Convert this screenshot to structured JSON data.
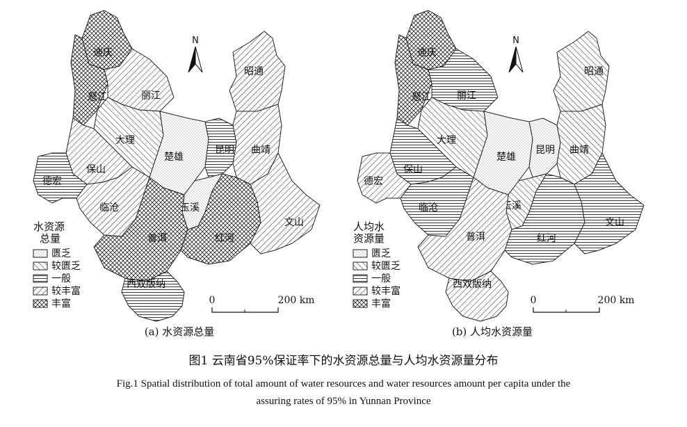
{
  "figure": {
    "caption_cn": "图1 云南省95%保证率下的水资源总量与人均水资源量分布",
    "caption_en_line1": "Fig.1  Spatial distribution of total amount of water resources and water resources amount per capita under the",
    "caption_en_line2": "assuring rates of 95% in Yunnan Province"
  },
  "legend_categories": [
    "匮乏",
    "较匮乏",
    "一般",
    "较丰富",
    "丰富"
  ],
  "north_label": "N",
  "scale": {
    "zero": "0",
    "max": "200 km"
  },
  "maps": [
    {
      "id": "a",
      "caption": "(a) 水资源总量",
      "legend_title_line1": "水资源",
      "legend_title_line2": "总量",
      "classes": {
        "迪庆": "丰富",
        "怒江": "丰富",
        "丽江": "较丰富",
        "大理": "较匮乏",
        "保山": "较丰富",
        "德宏": "一般",
        "临沧": "较丰富",
        "楚雄": "匮乏",
        "昆明": "一般",
        "曲靖": "较丰富",
        "昭通": "较丰富",
        "玉溪": "匮乏",
        "普洱": "丰富",
        "红河": "丰富",
        "文山": "较丰富",
        "西双版纳": "一般"
      }
    },
    {
      "id": "b",
      "caption": "(b) 人均水资源量",
      "legend_title_line1": "人均水",
      "legend_title_line2": "资源量",
      "classes": {
        "迪庆": "丰富",
        "怒江": "丰富",
        "丽江": "一般",
        "大理": "较匮乏",
        "保山": "一般",
        "德宏": "较丰富",
        "临沧": "一般",
        "楚雄": "匮乏",
        "昆明": "匮乏",
        "曲靖": "较匮乏",
        "昭通": "较匮乏",
        "玉溪": "较匮乏",
        "普洱": "较丰富",
        "红河": "一般",
        "文山": "一般",
        "西双版纳": "较丰富"
      }
    }
  ]
}
